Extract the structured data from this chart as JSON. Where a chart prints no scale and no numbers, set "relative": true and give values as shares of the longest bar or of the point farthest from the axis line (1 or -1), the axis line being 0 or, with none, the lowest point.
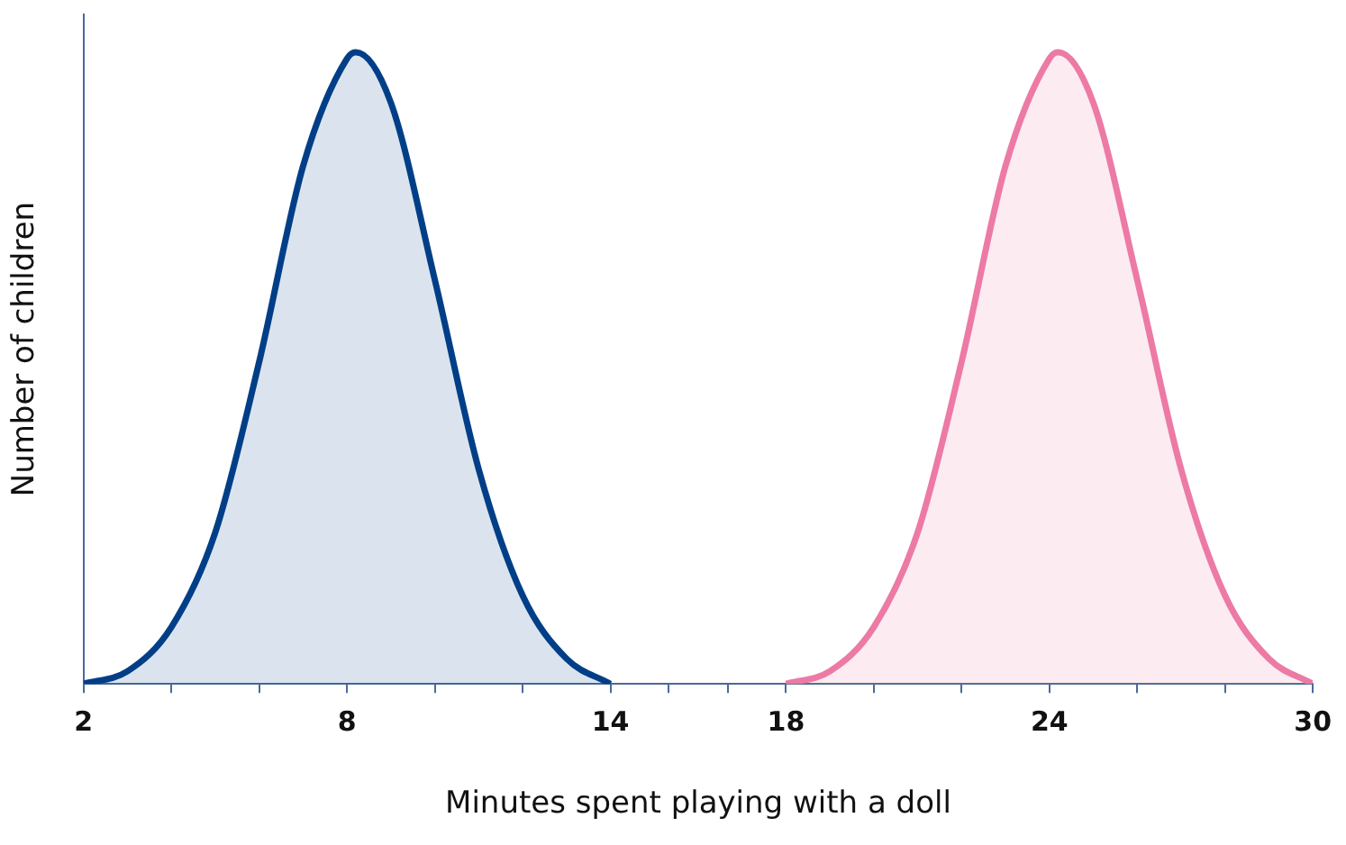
{
  "chart_data": {
    "type": "area",
    "relative": true,
    "xlabel": "Minutes spent playing with a doll",
    "ylabel": "Number of children",
    "xlim": [
      2,
      30
    ],
    "xticks": [
      2,
      {
        "value": 4,
        "label": null
      },
      {
        "value": 6,
        "label": null
      },
      8,
      {
        "value": 10,
        "label": null
      },
      {
        "value": 12,
        "label": null
      },
      14,
      {
        "value": 15.33,
        "label": null
      },
      {
        "value": 16.67,
        "label": null
      },
      18,
      {
        "value": 20,
        "label": null
      },
      {
        "value": 22,
        "label": null
      },
      24,
      {
        "value": 26,
        "label": null
      },
      {
        "value": 28,
        "label": null
      },
      30
    ],
    "grid": false,
    "legend": false,
    "marker": "none",
    "line_style": "solid",
    "series": [
      {
        "color": "#003f87",
        "x": [
          2,
          3,
          4,
          5,
          6,
          7,
          8,
          8.2,
          9,
          10,
          11,
          12,
          13,
          14
        ],
        "values": [
          0,
          0.02,
          0.09,
          0.24,
          0.51,
          0.82,
          0.99,
          1,
          0.92,
          0.64,
          0.34,
          0.14,
          0.04,
          0
        ]
      },
      {
        "color": "#ec7aa5",
        "x": [
          18,
          19,
          20,
          21,
          22,
          23,
          24,
          24.2,
          25,
          26,
          27,
          28,
          29,
          30
        ],
        "values": [
          0,
          0.02,
          0.09,
          0.24,
          0.51,
          0.82,
          0.99,
          1,
          0.92,
          0.64,
          0.34,
          0.14,
          0.04,
          0
        ]
      }
    ]
  }
}
